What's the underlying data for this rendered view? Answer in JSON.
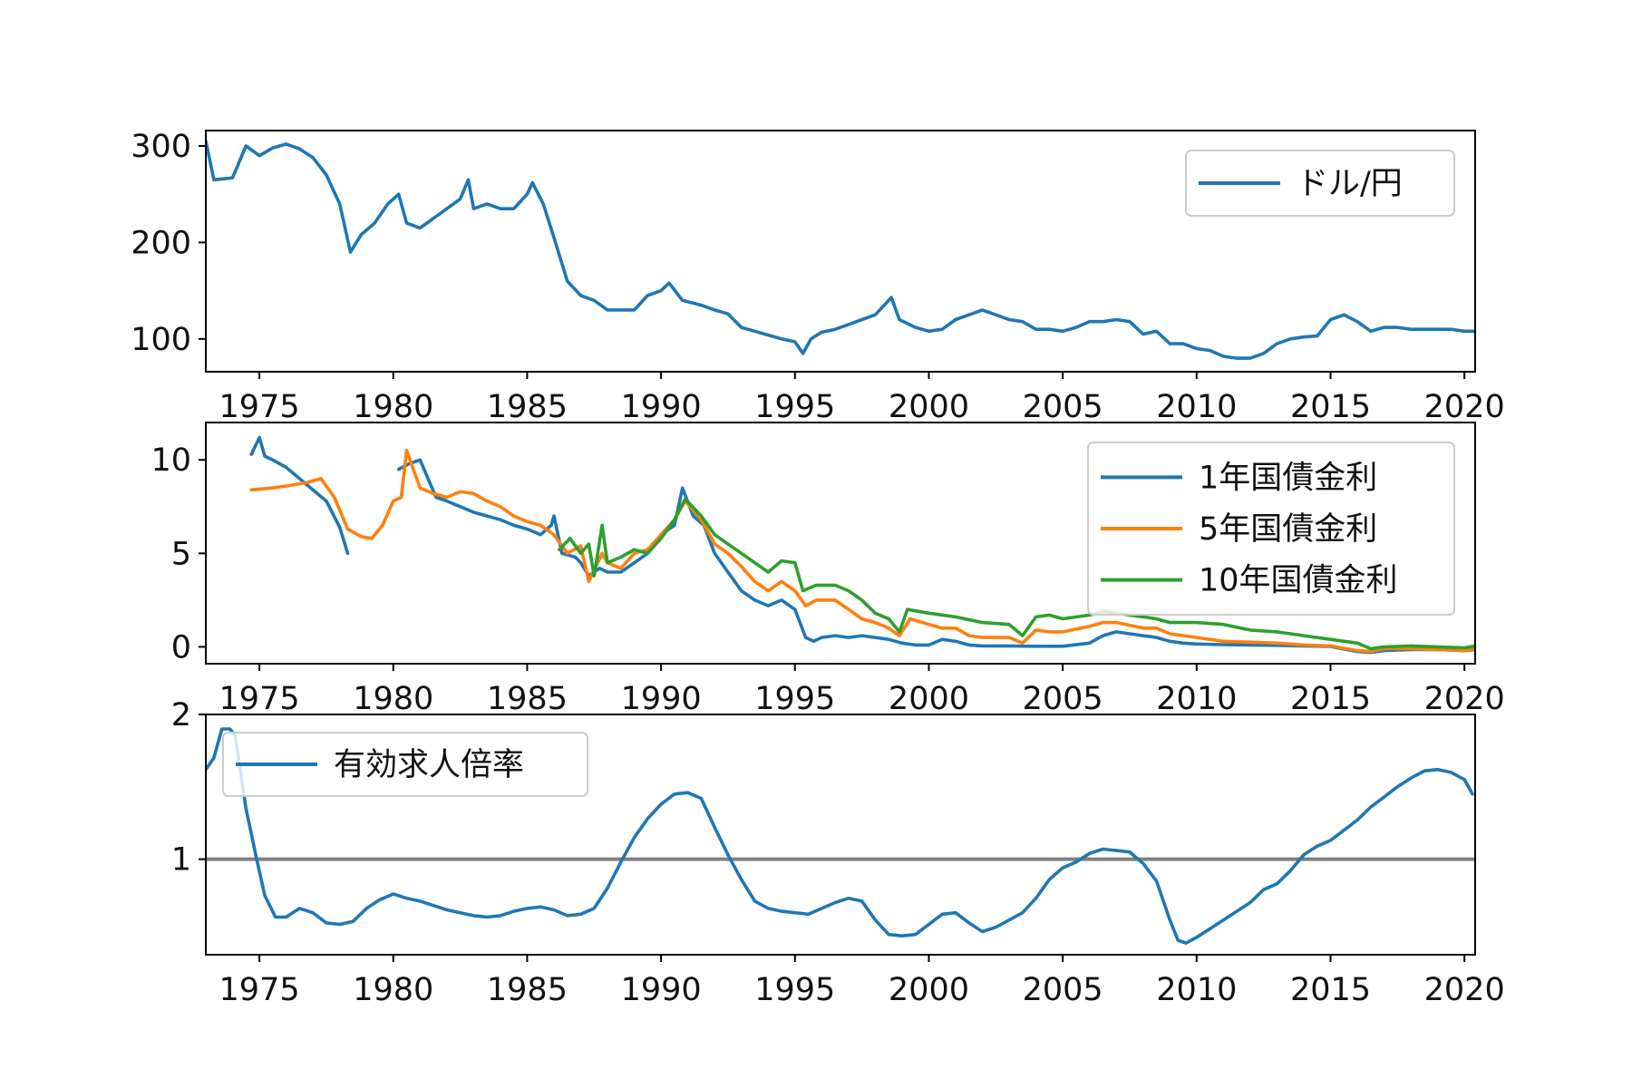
{
  "chart_data": [
    {
      "type": "line",
      "panel": "top",
      "xlim": [
        1973.0,
        2020.4
      ],
      "ylim": [
        66,
        316
      ],
      "xticks": [
        1975,
        1980,
        1985,
        1990,
        1995,
        2000,
        2005,
        2010,
        2015,
        2020
      ],
      "yticks": [
        100,
        200,
        300
      ],
      "grid": false,
      "legend_position": "upper right",
      "series": [
        {
          "name": "ドル/円",
          "color": "#1f77b4",
          "x": [
            1973.0,
            1973.3,
            1974.0,
            1974.5,
            1975.0,
            1975.5,
            1976.0,
            1976.5,
            1977.0,
            1977.5,
            1978.0,
            1978.4,
            1978.8,
            1979.3,
            1979.8,
            1980.2,
            1980.5,
            1981.0,
            1981.5,
            1982.0,
            1982.5,
            1982.8,
            1983.0,
            1983.5,
            1984.0,
            1984.5,
            1985.0,
            1985.2,
            1985.6,
            1986.0,
            1986.5,
            1987.0,
            1987.5,
            1988.0,
            1988.5,
            1989.0,
            1989.5,
            1990.0,
            1990.3,
            1990.8,
            1991.5,
            1992.0,
            1992.5,
            1993.0,
            1993.5,
            1994.0,
            1994.5,
            1995.0,
            1995.3,
            1995.6,
            1996.0,
            1996.5,
            1997.0,
            1997.5,
            1998.0,
            1998.6,
            1998.9,
            1999.5,
            2000.0,
            2000.5,
            2001.0,
            2001.5,
            2002.0,
            2002.5,
            2003.0,
            2003.5,
            2004.0,
            2004.5,
            2005.0,
            2005.5,
            2006.0,
            2006.5,
            2007.0,
            2007.5,
            2008.0,
            2008.5,
            2009.0,
            2009.5,
            2010.0,
            2010.5,
            2011.0,
            2011.5,
            2012.0,
            2012.5,
            2013.0,
            2013.5,
            2014.0,
            2014.5,
            2015.0,
            2015.5,
            2016.0,
            2016.5,
            2017.0,
            2017.5,
            2018.0,
            2018.5,
            2019.0,
            2019.5,
            2020.0,
            2020.4
          ],
          "y": [
            305,
            265,
            267,
            300,
            290,
            298,
            302,
            297,
            288,
            270,
            240,
            190,
            208,
            220,
            240,
            250,
            220,
            215,
            225,
            235,
            245,
            265,
            235,
            240,
            235,
            235,
            250,
            262,
            240,
            205,
            160,
            145,
            140,
            130,
            130,
            130,
            145,
            150,
            158,
            140,
            135,
            130,
            126,
            112,
            108,
            104,
            100,
            97,
            85,
            100,
            107,
            110,
            115,
            120,
            125,
            143,
            120,
            112,
            108,
            110,
            120,
            125,
            130,
            125,
            120,
            118,
            110,
            110,
            108,
            112,
            118,
            118,
            120,
            118,
            105,
            108,
            95,
            95,
            90,
            88,
            82,
            80,
            80,
            85,
            95,
            100,
            102,
            103,
            120,
            125,
            118,
            108,
            112,
            112,
            110,
            110,
            110,
            110,
            108,
            108
          ]
        }
      ]
    },
    {
      "type": "line",
      "panel": "middle",
      "xlim": [
        1973.0,
        2020.4
      ],
      "ylim": [
        -0.9,
        12.0
      ],
      "xticks": [
        1975,
        1980,
        1985,
        1990,
        1995,
        2000,
        2005,
        2010,
        2015,
        2020
      ],
      "yticks": [
        0,
        5,
        10
      ],
      "grid": false,
      "legend_position": "upper right",
      "series": [
        {
          "name": "1年国債金利",
          "color": "#1f77b4",
          "x": [
            1974.7,
            1975.0,
            1975.2,
            1975.5,
            1976.0,
            1976.5,
            1977.0,
            1977.5,
            1978.0,
            1978.3
          ],
          "y": [
            10.3,
            11.2,
            10.2,
            10.0,
            9.6,
            9.0,
            8.4,
            7.8,
            6.4,
            5.0
          ],
          "x2": [
            1980.2,
            1980.6,
            1981.0,
            1981.3,
            1981.6,
            1982.0,
            1982.5,
            1983.0,
            1983.5,
            1984.0,
            1984.5,
            1985.0,
            1985.5,
            1985.9,
            1986.0,
            1986.3,
            1986.8,
            1987.0,
            1987.3,
            1987.7,
            1988.0,
            1988.5,
            1989.0,
            1989.5,
            1990.0,
            1990.5,
            1990.8,
            1991.2,
            1991.6,
            1992.0,
            1992.5,
            1993.0,
            1993.5,
            1994.0,
            1994.5,
            1995.0,
            1995.4,
            1995.7,
            1996.0,
            1996.5,
            1997.0,
            1997.5,
            1998.0,
            1998.5,
            1999.0,
            1999.5,
            2000.0,
            2000.5,
            2001.0,
            2001.5,
            2002.0,
            2003.0,
            2004.0,
            2005.0,
            2006.0,
            2006.5,
            2007.0,
            2007.5,
            2008.0,
            2008.5,
            2009.0,
            2009.5,
            2010.0,
            2011.0,
            2012.0,
            2013.0,
            2014.0,
            2015.0,
            2016.0,
            2016.5,
            2017.0,
            2018.0,
            2019.0,
            2020.0,
            2020.4
          ],
          "y2": [
            9.5,
            9.8,
            10.0,
            9.0,
            8.0,
            7.8,
            7.5,
            7.2,
            7.0,
            6.8,
            6.5,
            6.3,
            6.0,
            6.5,
            7.0,
            5.0,
            4.8,
            4.5,
            3.8,
            4.2,
            4.0,
            4.0,
            4.5,
            5.0,
            6.0,
            6.5,
            8.5,
            7.0,
            6.5,
            5.0,
            4.0,
            3.0,
            2.5,
            2.2,
            2.5,
            2.0,
            0.5,
            0.3,
            0.5,
            0.6,
            0.5,
            0.6,
            0.5,
            0.4,
            0.2,
            0.1,
            0.1,
            0.4,
            0.3,
            0.1,
            0.05,
            0.05,
            0.03,
            0.03,
            0.2,
            0.6,
            0.8,
            0.7,
            0.6,
            0.5,
            0.3,
            0.2,
            0.15,
            0.12,
            0.1,
            0.08,
            0.05,
            0.02,
            -0.25,
            -0.3,
            -0.2,
            -0.15,
            -0.15,
            -0.2,
            -0.15
          ]
        },
        {
          "name": "5年国債金利",
          "color": "#ff7f0e",
          "x": [
            1974.7,
            1975.5,
            1976.0,
            1976.8,
            1977.3,
            1977.8,
            1978.3,
            1978.8,
            1979.2,
            1979.6,
            1980.0,
            1980.3,
            1980.5,
            1981.0,
            1981.5,
            1982.0,
            1982.5,
            1983.0,
            1983.5,
            1984.0,
            1984.5,
            1985.0,
            1985.5,
            1986.0,
            1986.5,
            1987.0,
            1987.3,
            1987.8,
            1988.0,
            1988.5,
            1989.0,
            1989.5,
            1990.0,
            1990.5,
            1990.9,
            1991.5,
            1992.0,
            1992.5,
            1993.0,
            1993.5,
            1994.0,
            1994.5,
            1995.0,
            1995.4,
            1995.8,
            1996.5,
            1997.0,
            1997.5,
            1998.0,
            1998.5,
            1998.9,
            1999.3,
            2000.0,
            2000.5,
            2001.0,
            2001.5,
            2002.0,
            2003.0,
            2003.5,
            2004.0,
            2004.5,
            2005.0,
            2006.0,
            2006.5,
            2007.0,
            2008.0,
            2008.5,
            2009.0,
            2010.0,
            2011.0,
            2012.0,
            2013.0,
            2014.0,
            2015.0,
            2016.0,
            2016.5,
            2017.0,
            2018.0,
            2019.0,
            2020.0,
            2020.4
          ],
          "y": [
            8.4,
            8.5,
            8.6,
            8.8,
            9.0,
            8.0,
            6.3,
            5.9,
            5.8,
            6.5,
            7.8,
            8.0,
            10.5,
            8.5,
            8.2,
            8.0,
            8.3,
            8.2,
            7.8,
            7.5,
            7.0,
            6.7,
            6.5,
            6.0,
            5.0,
            5.4,
            3.5,
            5.0,
            4.5,
            4.2,
            5.0,
            5.2,
            6.0,
            6.8,
            7.8,
            6.8,
            5.5,
            5.0,
            4.3,
            3.5,
            3.0,
            3.5,
            3.0,
            2.2,
            2.5,
            2.5,
            2.0,
            1.5,
            1.3,
            1.0,
            0.6,
            1.5,
            1.2,
            1.0,
            1.0,
            0.6,
            0.5,
            0.5,
            0.2,
            0.9,
            0.8,
            0.8,
            1.1,
            1.3,
            1.3,
            1.0,
            1.0,
            0.7,
            0.5,
            0.3,
            0.25,
            0.2,
            0.1,
            0.05,
            -0.2,
            -0.25,
            -0.1,
            -0.1,
            -0.15,
            -0.2,
            -0.1
          ]
        },
        {
          "name": "10年国債金利",
          "color": "#2ca02c",
          "x": [
            1986.2,
            1986.6,
            1987.0,
            1987.3,
            1987.5,
            1987.8,
            1988.0,
            1988.5,
            1989.0,
            1989.5,
            1990.0,
            1990.5,
            1990.9,
            1991.5,
            1992.0,
            1992.5,
            1993.0,
            1993.5,
            1994.0,
            1994.5,
            1995.0,
            1995.3,
            1995.8,
            1996.5,
            1997.0,
            1997.5,
            1998.0,
            1998.5,
            1998.9,
            1999.2,
            2000.0,
            2001.0,
            2002.0,
            2003.0,
            2003.5,
            2004.0,
            2004.5,
            2005.0,
            2006.0,
            2006.5,
            2007.0,
            2008.0,
            2008.5,
            2009.0,
            2010.0,
            2011.0,
            2012.0,
            2013.0,
            2014.0,
            2015.0,
            2016.0,
            2016.5,
            2017.0,
            2018.0,
            2019.0,
            2020.0,
            2020.4
          ],
          "y": [
            5.2,
            5.8,
            5.0,
            5.5,
            3.8,
            6.5,
            4.5,
            4.8,
            5.2,
            5.0,
            5.8,
            6.8,
            7.9,
            7.0,
            6.0,
            5.5,
            5.0,
            4.5,
            4.0,
            4.6,
            4.5,
            3.0,
            3.3,
            3.3,
            3.0,
            2.5,
            1.8,
            1.5,
            0.8,
            2.0,
            1.8,
            1.6,
            1.3,
            1.2,
            0.6,
            1.6,
            1.7,
            1.5,
            1.7,
            1.9,
            1.8,
            1.6,
            1.5,
            1.3,
            1.3,
            1.2,
            0.9,
            0.8,
            0.6,
            0.4,
            0.2,
            -0.1,
            0.0,
            0.05,
            0.0,
            -0.05,
            0.05
          ]
        }
      ]
    },
    {
      "type": "line",
      "panel": "bottom",
      "xlim": [
        1973.0,
        2020.4
      ],
      "ylim": [
        0.34,
        2.0
      ],
      "xticks": [
        1975,
        1980,
        1985,
        1990,
        1995,
        2000,
        2005,
        2010,
        2015,
        2020
      ],
      "yticks": [
        1,
        2
      ],
      "grid": false,
      "legend_position": "upper left",
      "reference_line": 1,
      "series": [
        {
          "name": "有効求人倍率",
          "color": "#1f77b4",
          "x": [
            1973.0,
            1973.3,
            1973.6,
            1973.9,
            1974.1,
            1974.5,
            1974.9,
            1975.2,
            1975.6,
            1976.0,
            1976.5,
            1977.0,
            1977.5,
            1978.0,
            1978.5,
            1979.0,
            1979.5,
            1980.0,
            1980.5,
            1981.0,
            1981.5,
            1982.0,
            1982.5,
            1983.0,
            1983.5,
            1984.0,
            1984.5,
            1985.0,
            1985.5,
            1986.0,
            1986.5,
            1987.0,
            1987.5,
            1988.0,
            1988.5,
            1989.0,
            1989.5,
            1990.0,
            1990.5,
            1991.0,
            1991.5,
            1992.0,
            1992.5,
            1993.0,
            1993.5,
            1994.0,
            1994.5,
            1995.0,
            1995.5,
            1996.0,
            1996.5,
            1997.0,
            1997.5,
            1998.0,
            1998.5,
            1999.0,
            1999.5,
            2000.0,
            2000.5,
            2001.0,
            2001.5,
            2002.0,
            2002.5,
            2003.0,
            2003.5,
            2004.0,
            2004.5,
            2005.0,
            2005.5,
            2006.0,
            2006.5,
            2007.0,
            2007.5,
            2008.0,
            2008.5,
            2009.0,
            2009.3,
            2009.6,
            2010.0,
            2010.5,
            2011.0,
            2011.5,
            2012.0,
            2012.5,
            2013.0,
            2013.5,
            2014.0,
            2014.5,
            2015.0,
            2015.5,
            2016.0,
            2016.5,
            2017.0,
            2017.5,
            2018.0,
            2018.5,
            2019.0,
            2019.5,
            2020.0,
            2020.3
          ],
          "y": [
            1.62,
            1.7,
            1.9,
            1.9,
            1.85,
            1.35,
            1.0,
            0.75,
            0.6,
            0.6,
            0.66,
            0.63,
            0.56,
            0.55,
            0.57,
            0.66,
            0.72,
            0.76,
            0.73,
            0.71,
            0.68,
            0.65,
            0.63,
            0.61,
            0.6,
            0.61,
            0.64,
            0.66,
            0.67,
            0.65,
            0.61,
            0.62,
            0.66,
            0.8,
            0.98,
            1.15,
            1.28,
            1.38,
            1.45,
            1.46,
            1.42,
            1.22,
            1.03,
            0.86,
            0.71,
            0.66,
            0.64,
            0.63,
            0.62,
            0.66,
            0.7,
            0.73,
            0.71,
            0.58,
            0.48,
            0.47,
            0.48,
            0.55,
            0.62,
            0.63,
            0.56,
            0.5,
            0.53,
            0.58,
            0.63,
            0.73,
            0.86,
            0.94,
            0.98,
            1.04,
            1.07,
            1.06,
            1.05,
            0.97,
            0.85,
            0.58,
            0.44,
            0.42,
            0.46,
            0.52,
            0.58,
            0.64,
            0.7,
            0.79,
            0.83,
            0.92,
            1.03,
            1.09,
            1.13,
            1.2,
            1.27,
            1.36,
            1.43,
            1.5,
            1.56,
            1.61,
            1.62,
            1.6,
            1.55,
            1.45
          ]
        }
      ]
    }
  ]
}
